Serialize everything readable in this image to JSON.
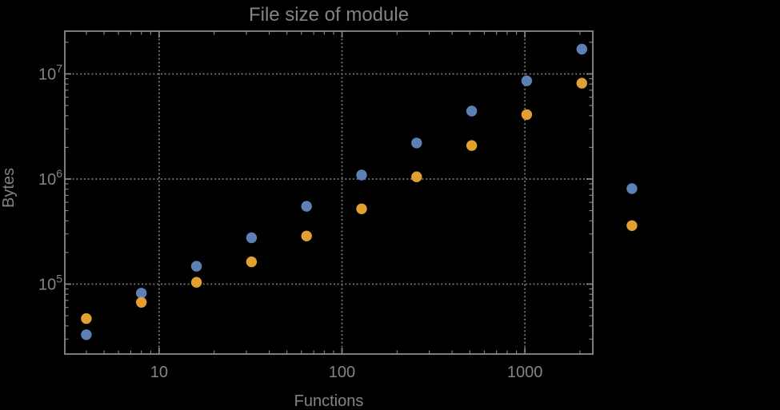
{
  "window": {
    "background_color": "#000000"
  },
  "chart_data": {
    "type": "scatter",
    "title": "File size of module",
    "xlabel": "Functions",
    "ylabel": "Bytes",
    "x_scale": "log",
    "y_scale": "log",
    "xlim": [
      3.05,
      2352
    ],
    "ylim": [
      21600,
      25500000
    ],
    "grid": {
      "show": true,
      "style": "dotted",
      "at": "major-ticks"
    },
    "legend": {
      "show": false
    },
    "x_major_ticks": [
      10,
      100,
      1000
    ],
    "x_major_tick_labels": [
      "10",
      "100",
      "1000"
    ],
    "y_major_ticks": [
      100000,
      1000000,
      10000000
    ],
    "y_major_tick_labels": [
      {
        "base": "10",
        "exponent": "5"
      },
      {
        "base": "10",
        "exponent": "6"
      },
      {
        "base": "10",
        "exponent": "7"
      }
    ],
    "x": [
      4,
      8,
      16,
      32,
      64,
      128,
      256,
      512,
      1024,
      2048,
      3850
    ],
    "series": [
      {
        "name": "series-1-blue",
        "color": "#5e81b5",
        "values": [
          33000,
          82000,
          148000,
          276000,
          550000,
          1090000,
          2200000,
          4430000,
          8600000,
          17200000,
          810000
        ]
      },
      {
        "name": "series-2-orange",
        "color": "#e2a030",
        "values": [
          47000,
          67000,
          104000,
          163000,
          287000,
          520000,
          1050000,
          2080000,
          4100000,
          8150000,
          360000
        ]
      }
    ],
    "marker": {
      "shape": "circle",
      "radius_px": 6.7
    },
    "styles": {
      "text_color": "#848484",
      "axis_color": "#8a8a8a",
      "grid_color": "#7d7d7d"
    }
  }
}
